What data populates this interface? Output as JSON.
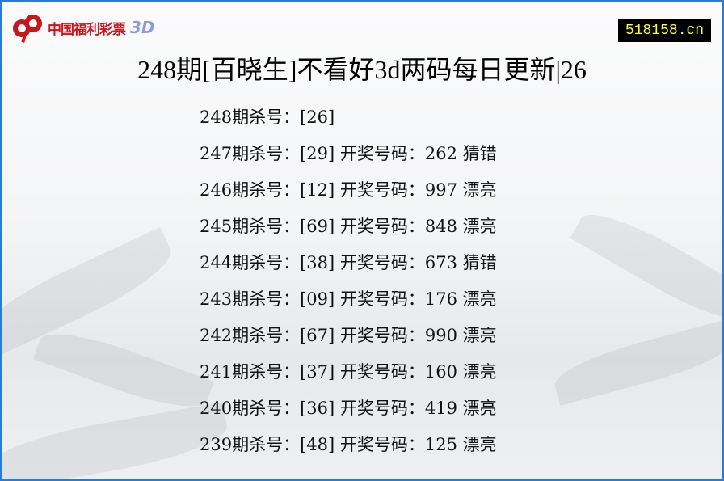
{
  "logo": {
    "text": "中国福利彩票",
    "suffix": "3D",
    "brand_color": "#c8161d"
  },
  "site_badge": "518158.cn",
  "title": "248期[百晓生]不看好3d两码每日更新|26",
  "rows": [
    {
      "issue": "248期杀号：",
      "kill": "[26]",
      "draw_label": "",
      "draw": "",
      "result": ""
    },
    {
      "issue": "247期杀号：",
      "kill": "[29]",
      "draw_label": "开奖号码：",
      "draw": "262",
      "result": "猜错"
    },
    {
      "issue": "246期杀号：",
      "kill": "[12]",
      "draw_label": "开奖号码：",
      "draw": "997",
      "result": "漂亮"
    },
    {
      "issue": "245期杀号：",
      "kill": "[69]",
      "draw_label": "开奖号码：",
      "draw": "848",
      "result": "漂亮"
    },
    {
      "issue": "244期杀号：",
      "kill": "[38]",
      "draw_label": "开奖号码：",
      "draw": "673",
      "result": "猜错"
    },
    {
      "issue": "243期杀号：",
      "kill": "[09]",
      "draw_label": "开奖号码：",
      "draw": "176",
      "result": "漂亮"
    },
    {
      "issue": "242期杀号：",
      "kill": "[67]",
      "draw_label": "开奖号码：",
      "draw": "990",
      "result": "漂亮"
    },
    {
      "issue": "241期杀号：",
      "kill": "[37]",
      "draw_label": "开奖号码：",
      "draw": "160",
      "result": "漂亮"
    },
    {
      "issue": "240期杀号：",
      "kill": "[36]",
      "draw_label": "开奖号码：",
      "draw": "419",
      "result": "漂亮"
    },
    {
      "issue": "239期杀号：",
      "kill": "[48]",
      "draw_label": "开奖号码：",
      "draw": "125",
      "result": "漂亮"
    }
  ]
}
